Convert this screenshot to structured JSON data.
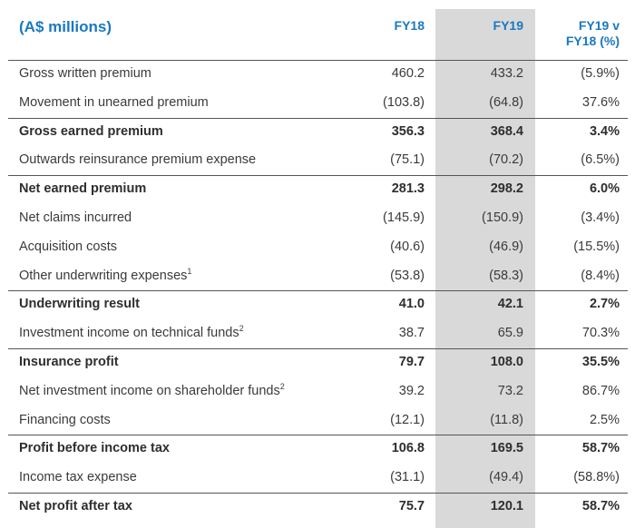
{
  "header": {
    "title": "(A$ millions)",
    "col_fy18": "FY18",
    "col_fy19": "FY19",
    "col_change_line1": "FY19 v",
    "col_change_line2": "FY18 (%)"
  },
  "rows": [
    {
      "label": "Gross written premium",
      "sup": "",
      "fy18": "460.2",
      "fy19": "433.2",
      "change": "(5.9%)",
      "bold": false,
      "line_top": false
    },
    {
      "label": "Movement in unearned premium",
      "sup": "",
      "fy18": "(103.8)",
      "fy19": "(64.8)",
      "change": "37.6%",
      "bold": false,
      "line_top": false
    },
    {
      "label": "Gross earned premium",
      "sup": "",
      "fy18": "356.3",
      "fy19": "368.4",
      "change": "3.4%",
      "bold": true,
      "line_top": true
    },
    {
      "label": "Outwards reinsurance premium expense",
      "sup": "",
      "fy18": "(75.1)",
      "fy19": "(70.2)",
      "change": "(6.5%)",
      "bold": false,
      "line_top": false
    },
    {
      "label": "Net earned premium",
      "sup": "",
      "fy18": "281.3",
      "fy19": "298.2",
      "change": "6.0%",
      "bold": true,
      "line_top": true
    },
    {
      "label": "Net claims incurred",
      "sup": "",
      "fy18": "(145.9)",
      "fy19": "(150.9)",
      "change": "(3.4%)",
      "bold": false,
      "line_top": false
    },
    {
      "label": "Acquisition costs",
      "sup": "",
      "fy18": "(40.6)",
      "fy19": "(46.9)",
      "change": "(15.5%)",
      "bold": false,
      "line_top": false
    },
    {
      "label": "Other underwriting expenses",
      "sup": "1",
      "fy18": "(53.8)",
      "fy19": "(58.3)",
      "change": "(8.4%)",
      "bold": false,
      "line_top": false
    },
    {
      "label": "Underwriting result",
      "sup": "",
      "fy18": "41.0",
      "fy19": "42.1",
      "change": "2.7%",
      "bold": true,
      "line_top": true
    },
    {
      "label": "Investment income on technical funds",
      "sup": "2",
      "fy18": "38.7",
      "fy19": "65.9",
      "change": "70.3%",
      "bold": false,
      "line_top": false
    },
    {
      "label": "Insurance profit",
      "sup": "",
      "fy18": "79.7",
      "fy19": "108.0",
      "change": "35.5%",
      "bold": true,
      "line_top": true
    },
    {
      "label": "Net investment income on shareholder funds",
      "sup": "2",
      "fy18": "39.2",
      "fy19": "73.2",
      "change": "86.7%",
      "bold": false,
      "line_top": false
    },
    {
      "label": "Financing costs",
      "sup": "",
      "fy18": "(12.1)",
      "fy19": "(11.8)",
      "change": "2.5%",
      "bold": false,
      "line_top": false
    },
    {
      "label": "Profit before income tax",
      "sup": "",
      "fy18": "106.8",
      "fy19": "169.5",
      "change": "58.7%",
      "bold": true,
      "line_top": true
    },
    {
      "label": "Income tax expense",
      "sup": "",
      "fy18": "(31.1)",
      "fy19": "(49.4)",
      "change": "(58.8%)",
      "bold": false,
      "line_top": false
    },
    {
      "label": "Net profit after tax",
      "sup": "",
      "fy18": "75.7",
      "fy19": "120.1",
      "change": "58.7%",
      "bold": true,
      "line_top": true
    }
  ],
  "colors": {
    "header_blue": "#1a78c2",
    "highlight_column": "#d9d9d9",
    "text": "#3a3a3a",
    "rule": "#555555"
  }
}
